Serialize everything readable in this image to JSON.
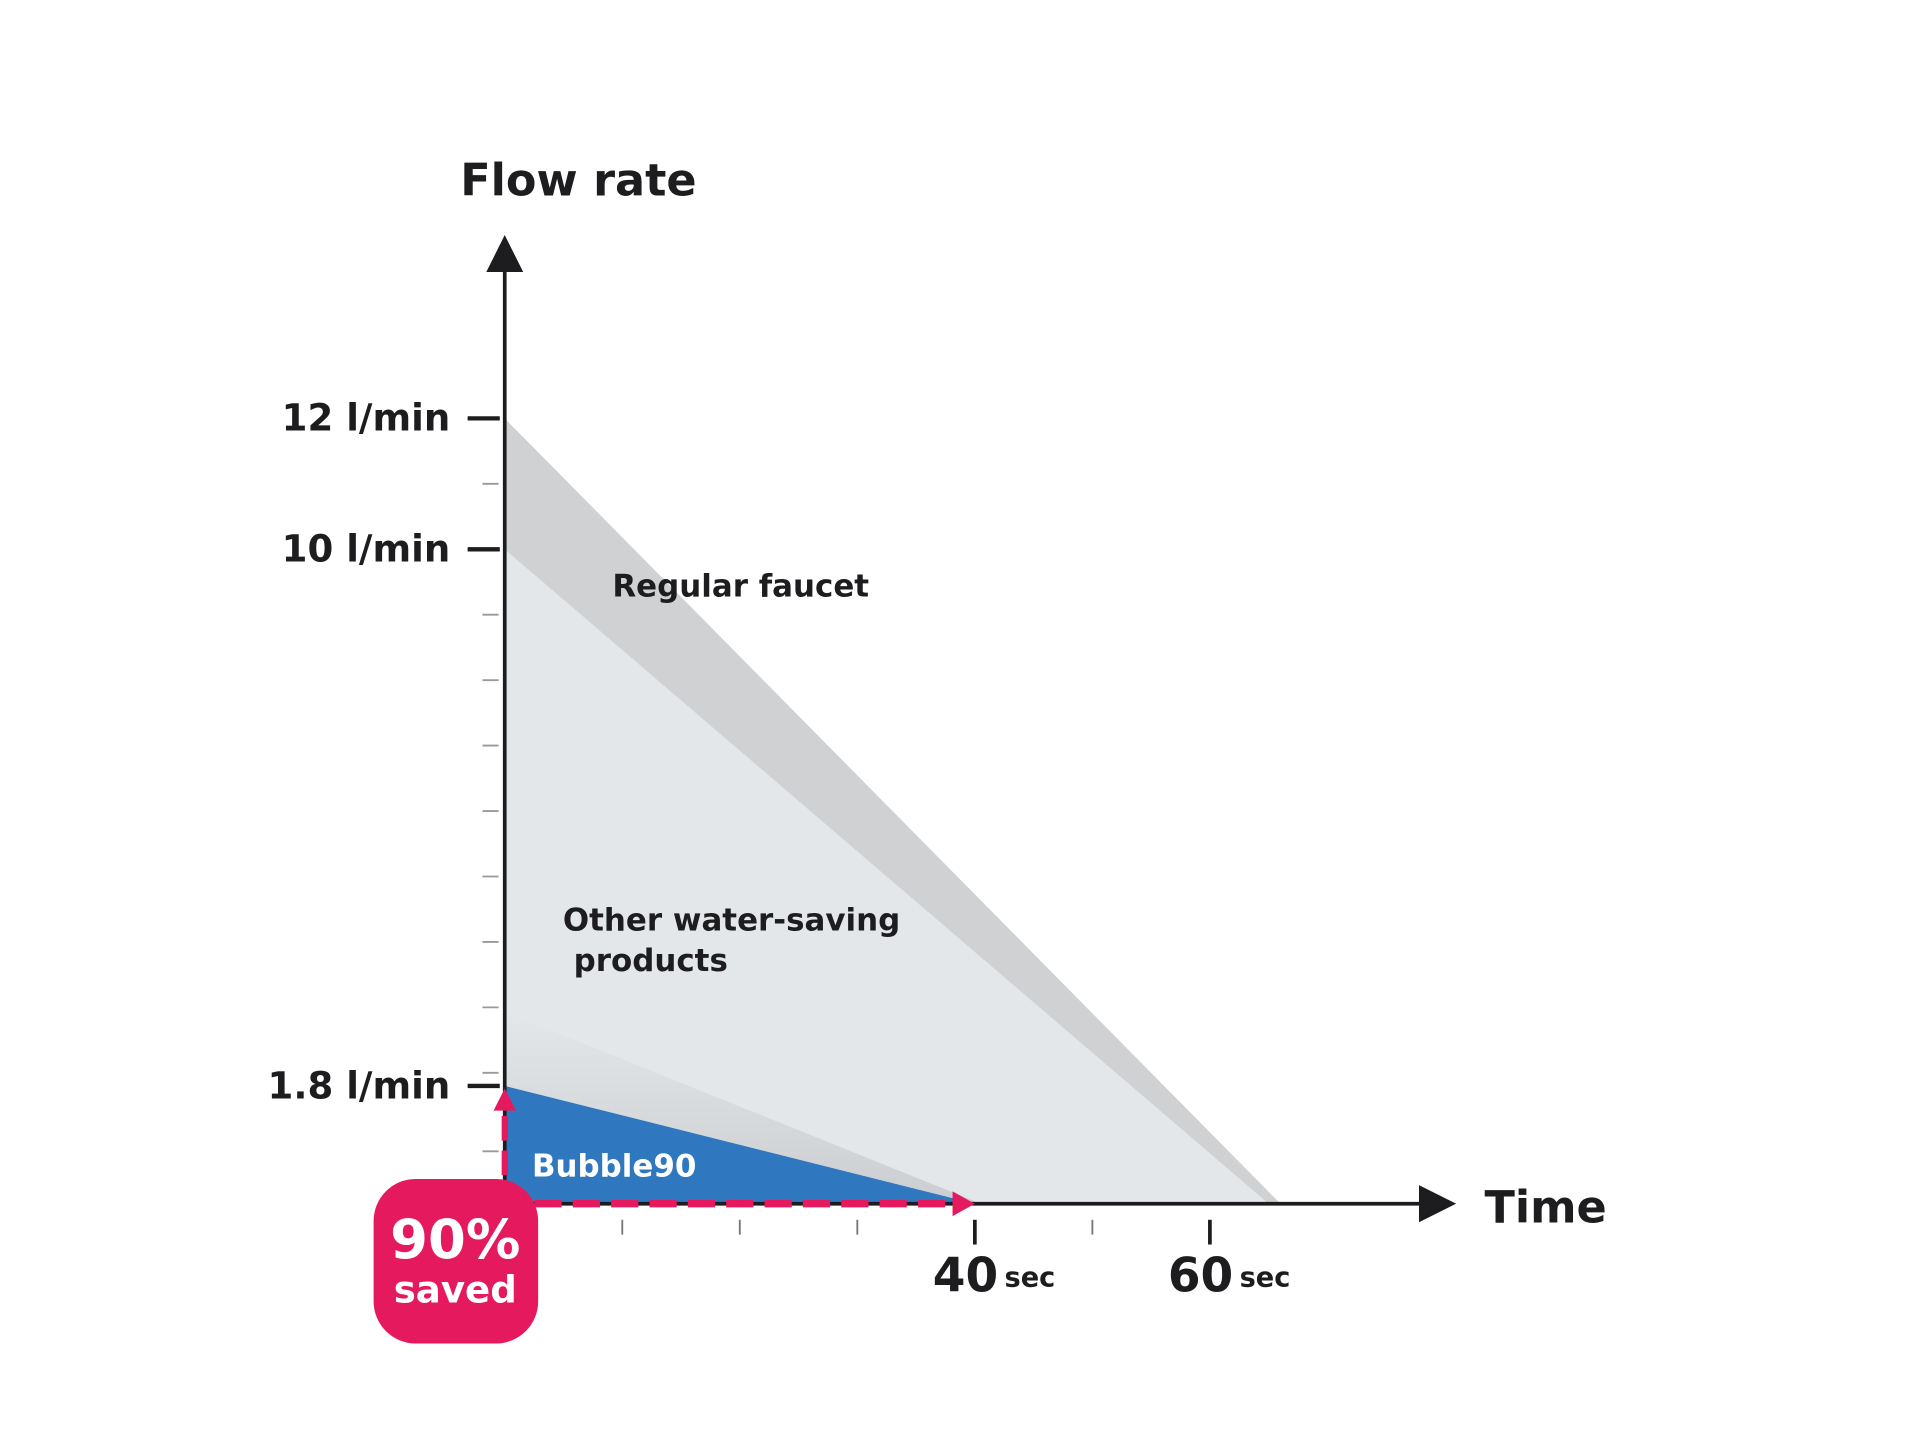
{
  "chart_data": {
    "type": "area",
    "title": "",
    "ylabel": "Flow rate",
    "xlabel": "Time",
    "ylim": [
      0,
      14.5
    ],
    "xlim": [
      0,
      80
    ],
    "y_ticks": [
      {
        "value": 12,
        "label": "12 l/min"
      },
      {
        "value": 10,
        "label": "10 l/min"
      },
      {
        "value": 1.8,
        "label": "1.8 l/min"
      }
    ],
    "y_minor_ticks": [
      11,
      9,
      8,
      7,
      6,
      5,
      4,
      3,
      2,
      0.8
    ],
    "x_ticks": [
      {
        "value": 40,
        "number": "40",
        "unit": "sec"
      },
      {
        "value": 60,
        "number": "60",
        "unit": "sec"
      }
    ],
    "x_minor_ticks": [
      10,
      20,
      30,
      50
    ],
    "series": [
      {
        "name": "Regular faucet",
        "label": "Regular faucet",
        "start_flow": 12,
        "end_time": 66,
        "color": "#d0d1d3"
      },
      {
        "name": "Other water-saving products",
        "label_lines": [
          "Other water-saving",
          " products"
        ],
        "start_flow": 10,
        "end_time": 65,
        "color": "#e4e7ea"
      },
      {
        "name": "Bubble90",
        "label": "Bubble90",
        "start_flow": 1.8,
        "end_time": 40,
        "color": "#2f78bf"
      }
    ],
    "badge": {
      "line1": "90%",
      "line2": "saved",
      "color": "#e5195e"
    }
  }
}
